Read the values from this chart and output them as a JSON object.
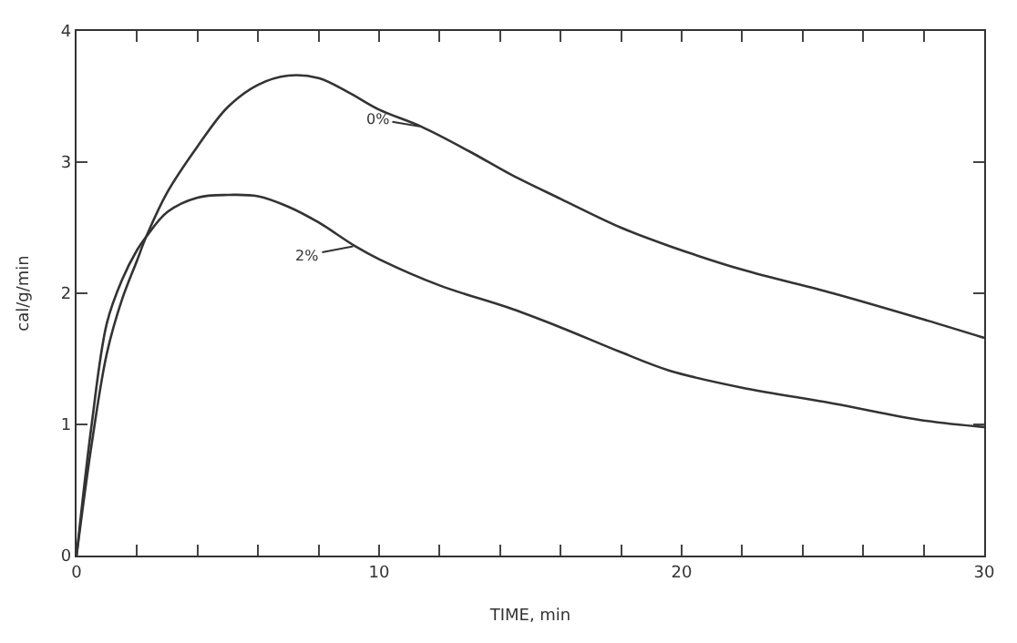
{
  "chart_data": {
    "type": "line",
    "xlabel": "TIME, min",
    "ylabel": "cal/g/min",
    "xlim": [
      0,
      30
    ],
    "ylim": [
      0,
      4
    ],
    "xticks": [
      0,
      {
        "value": 2,
        "label": null
      },
      {
        "value": 4,
        "label": null
      },
      {
        "value": 6,
        "label": null
      },
      {
        "value": 8,
        "label": null
      },
      10,
      {
        "value": 12,
        "label": null
      },
      {
        "value": 14,
        "label": null
      },
      {
        "value": 16,
        "label": null
      },
      {
        "value": 18,
        "label": null
      },
      20,
      {
        "value": 22,
        "label": null
      },
      {
        "value": 24,
        "label": null
      },
      {
        "value": 26,
        "label": null
      },
      {
        "value": 28,
        "label": null
      },
      30
    ],
    "yticks": [
      0,
      1,
      2,
      3,
      4
    ],
    "legend": false,
    "marker": "none",
    "line_style": "solid",
    "series": [
      {
        "color": "#333333",
        "x": [
          0,
          0.5,
          1,
          1.5,
          2,
          2.3,
          3,
          4,
          5,
          6,
          7,
          8,
          9,
          10,
          11.4,
          13,
          14.4,
          16,
          18,
          19.6,
          22,
          25,
          28,
          30
        ],
        "values": [
          0,
          0.85,
          1.54,
          1.95,
          2.25,
          2.43,
          2.77,
          3.12,
          3.42,
          3.59,
          3.66,
          3.64,
          3.53,
          3.4,
          3.27,
          3.08,
          2.9,
          2.72,
          2.5,
          2.36,
          2.18,
          2.0,
          1.8,
          1.66
        ]
      },
      {
        "color": "#333333",
        "x": [
          0,
          0.5,
          1,
          1.5,
          2,
          2.3,
          3,
          4,
          5,
          6,
          7,
          8,
          9.2,
          10,
          12,
          14.4,
          16,
          18,
          19.6,
          22,
          25,
          28,
          30
        ],
        "values": [
          0,
          1.0,
          1.77,
          2.1,
          2.33,
          2.43,
          2.62,
          2.73,
          2.75,
          2.74,
          2.66,
          2.54,
          2.36,
          2.26,
          2.06,
          1.88,
          1.74,
          1.55,
          1.41,
          1.28,
          1.16,
          1.03,
          0.98
        ]
      }
    ],
    "annotations": [
      {
        "text": "0%",
        "x": 11.4,
        "y": 3.27
      },
      {
        "text": "2%",
        "x": 9.2,
        "y": 2.36
      }
    ]
  }
}
